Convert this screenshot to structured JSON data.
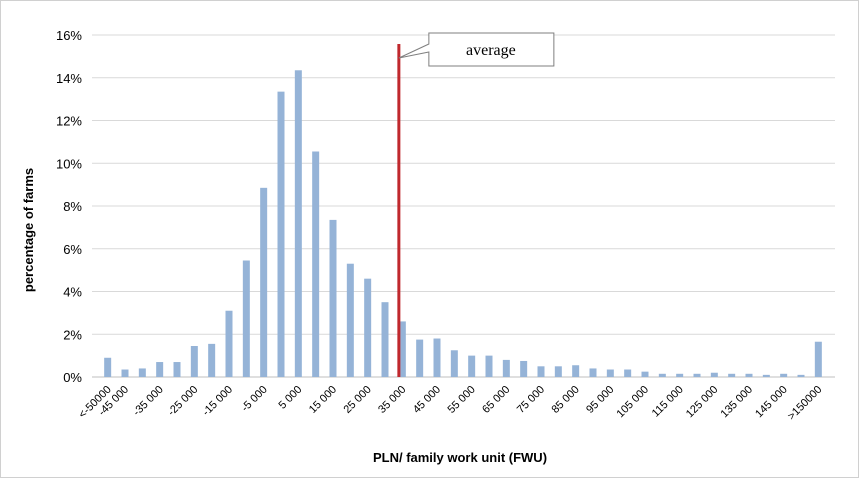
{
  "chart_data": {
    "type": "bar",
    "categories": [
      "<-50000",
      "-45 000",
      null,
      "-35 000",
      null,
      "-25 000",
      null,
      "-15 000",
      null,
      "-5 000",
      null,
      "5 000",
      null,
      "15 000",
      null,
      "25 000",
      null,
      "35 000",
      null,
      "45 000",
      null,
      "55 000",
      null,
      "65 000",
      null,
      "75 000",
      null,
      "85 000",
      null,
      "95 000",
      null,
      "105 000",
      null,
      "115 000",
      null,
      "125 000",
      null,
      "135 000",
      null,
      "145 000",
      null,
      ">150000"
    ],
    "values": [
      0.9,
      0.35,
      0.4,
      0.7,
      0.7,
      1.45,
      1.55,
      3.1,
      5.45,
      8.85,
      13.35,
      14.35,
      10.55,
      7.35,
      5.3,
      4.6,
      3.5,
      2.6,
      1.75,
      1.8,
      1.25,
      1.0,
      1.0,
      0.8,
      0.75,
      0.5,
      0.5,
      0.55,
      0.4,
      0.35,
      0.35,
      0.25,
      0.15,
      0.15,
      0.15,
      0.2,
      0.15,
      0.15,
      0.1,
      0.15,
      0.1,
      1.65
    ],
    "color": "#95b3d7",
    "ylim": [
      0,
      16
    ],
    "yticks": [
      {
        "value": 0,
        "label": "0%"
      },
      {
        "value": 2,
        "label": "2%"
      },
      {
        "value": 4,
        "label": "4%"
      },
      {
        "value": 6,
        "label": "6%"
      },
      {
        "value": 8,
        "label": "8%"
      },
      {
        "value": 10,
        "label": "10%"
      },
      {
        "value": 12,
        "label": "12%"
      },
      {
        "value": 14,
        "label": "14%"
      },
      {
        "value": 16,
        "label": "16%"
      }
    ],
    "grid": true,
    "xlabel": "PLN/ family work unit (FWU)",
    "ylabel": "percentage of farms",
    "annotation": {
      "text": "average",
      "x": 34000,
      "color": "#c0282d"
    }
  }
}
